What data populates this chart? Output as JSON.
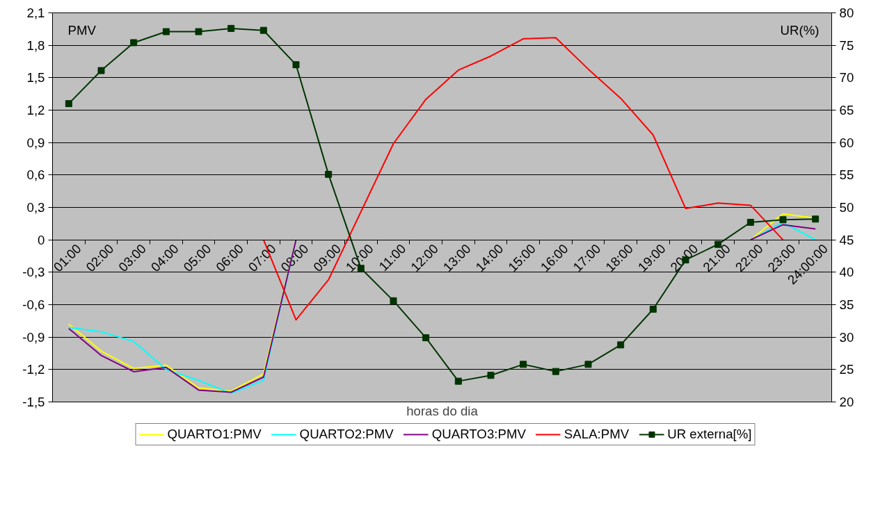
{
  "chart_data": {
    "type": "line",
    "xlabel": "horas do dia",
    "ylabel": "PMV",
    "y2label": "UR(%)",
    "categories": [
      "01:00",
      "02:00",
      "03:00",
      "04:00",
      "05:00",
      "06:00",
      "07:00",
      "08:00",
      "09:00",
      "10:00",
      "11:00",
      "12:00",
      "13:00",
      "14:00",
      "15:00",
      "16:00",
      "17:00",
      "18:00",
      "19:00",
      "20:00",
      "21:00",
      "22:00",
      "23:00",
      "24:00:00"
    ],
    "series": [
      {
        "name": "QUARTO1:PMV",
        "color": "#ffff00",
        "values": [
          -0.78,
          -1.03,
          -1.19,
          -1.16,
          -1.37,
          -1.4,
          -1.24,
          0,
          null,
          null,
          null,
          null,
          null,
          null,
          null,
          null,
          null,
          null,
          null,
          null,
          null,
          0,
          0.24,
          0.2
        ]
      },
      {
        "name": "QUARTO2:PMV",
        "color": "#00ffff",
        "values": [
          -0.81,
          -0.85,
          -0.94,
          -1.2,
          -1.3,
          -1.42,
          -1.3,
          0,
          null,
          null,
          null,
          null,
          null,
          null,
          null,
          null,
          null,
          null,
          null,
          null,
          null,
          0,
          0.16,
          0
        ]
      },
      {
        "name": "QUARTO3:PMV",
        "color": "#800080",
        "values": [
          -0.82,
          -1.07,
          -1.22,
          -1.18,
          -1.39,
          -1.41,
          -1.27,
          0,
          null,
          null,
          null,
          null,
          null,
          null,
          null,
          null,
          null,
          null,
          null,
          null,
          null,
          0,
          0.14,
          0.1
        ]
      },
      {
        "name": "SALA:PMV",
        "color": "#ff0000",
        "values": [
          null,
          null,
          null,
          null,
          null,
          null,
          0,
          -0.74,
          -0.37,
          0.26,
          0.89,
          1.3,
          1.57,
          1.7,
          1.86,
          1.87,
          1.58,
          1.31,
          0.97,
          0.29,
          0.34,
          0.32,
          0,
          null
        ]
      },
      {
        "name": "UR externa[%]",
        "color": "#003300",
        "axis": "y2",
        "marker": "square",
        "values": [
          66.0,
          71.1,
          75.4,
          77.1,
          77.1,
          77.6,
          77.3,
          72.0,
          55.1,
          40.6,
          35.6,
          29.9,
          23.2,
          24.1,
          25.8,
          24.7,
          25.8,
          28.8,
          34.3,
          41.9,
          44.3,
          47.7,
          48.1,
          48.2
        ]
      }
    ],
    "ylim": [
      -1.5,
      2.1
    ],
    "yticks": [
      {
        "value": -1.5,
        "label": "-1,5"
      },
      {
        "value": -1.2,
        "label": "-1,2"
      },
      {
        "value": -0.9,
        "label": "-0,9"
      },
      {
        "value": -0.6,
        "label": "-0,6"
      },
      {
        "value": -0.3,
        "label": "-0,3"
      },
      0,
      {
        "value": 0.3,
        "label": "0,3"
      },
      {
        "value": 0.6,
        "label": "0,6"
      },
      {
        "value": 0.9,
        "label": "0,9"
      },
      {
        "value": 1.2,
        "label": "1,2"
      },
      {
        "value": 1.5,
        "label": "1,5"
      },
      {
        "value": 1.8,
        "label": "1,8"
      },
      {
        "value": 2.1,
        "label": "2,1"
      }
    ],
    "y2lim": [
      20,
      80
    ],
    "y2ticks": [
      20,
      25,
      30,
      35,
      40,
      45,
      50,
      55,
      60,
      65,
      70,
      75,
      80
    ],
    "grid": "y",
    "legend": "bottom",
    "marker": "none",
    "line_style": "solid"
  }
}
